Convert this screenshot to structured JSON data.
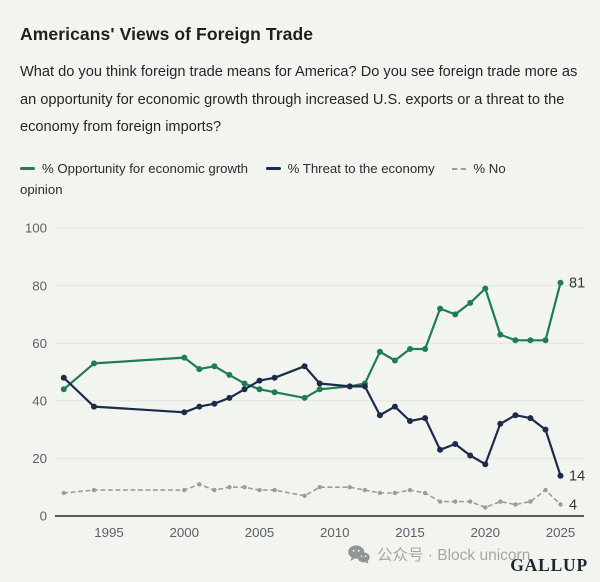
{
  "page": {
    "background": "#f2f4ef"
  },
  "header": {
    "title": "Americans' Views of Foreign Trade",
    "question": "What do you think foreign trade means for America? Do you see foreign trade more as an opportunity for economic growth through increased U.S. exports or a threat to the economy from foreign imports?"
  },
  "legend": {
    "items": [
      {
        "label": "% Opportunity for economic growth",
        "color": "#1f7d54",
        "style": "solid"
      },
      {
        "label": "% Threat to the economy",
        "color": "#1b2b4b",
        "style": "solid"
      },
      {
        "label": "% No opinion",
        "color": "#999e97",
        "style": "dashed"
      }
    ]
  },
  "chart_data": {
    "type": "line",
    "title": "Americans' Views of Foreign Trade",
    "xlabel": "",
    "ylabel": "",
    "ylim": [
      0,
      100
    ],
    "yticks": [
      0,
      20,
      40,
      60,
      80,
      100
    ],
    "xticks": [
      1995,
      2000,
      2005,
      2010,
      2015,
      2020,
      2025
    ],
    "grid": true,
    "legend_position": "top",
    "x": [
      1992,
      1994,
      2000,
      2001,
      2002,
      2003,
      2004,
      2005,
      2006,
      2008,
      2009,
      2011,
      2012,
      2013,
      2014,
      2015,
      2016,
      2017,
      2018,
      2019,
      2020,
      2021,
      2022,
      2023,
      2024,
      2025
    ],
    "series": [
      {
        "name": "% Opportunity for economic growth",
        "color": "#1f7d54",
        "dashed": false,
        "values": [
          44,
          53,
          55,
          51,
          52,
          49,
          46,
          44,
          43,
          41,
          44,
          45,
          46,
          57,
          54,
          58,
          58,
          72,
          70,
          74,
          79,
          63,
          61,
          61,
          61,
          81
        ]
      },
      {
        "name": "% Threat to the economy",
        "color": "#1b2b4b",
        "dashed": false,
        "values": [
          48,
          38,
          36,
          38,
          39,
          41,
          44,
          47,
          48,
          52,
          46,
          45,
          45,
          35,
          38,
          33,
          34,
          23,
          25,
          21,
          18,
          32,
          35,
          34,
          30,
          14
        ]
      },
      {
        "name": "% No opinion",
        "color": "#999e97",
        "dashed": true,
        "values": [
          8,
          9,
          9,
          11,
          9,
          10,
          10,
          9,
          9,
          7,
          10,
          10,
          9,
          8,
          8,
          9,
          8,
          5,
          5,
          5,
          3,
          5,
          4,
          5,
          9,
          4
        ]
      }
    ],
    "end_labels": [
      {
        "text": "81",
        "value": 81
      },
      {
        "text": "14",
        "value": 14
      },
      {
        "text": "4",
        "value": 4
      }
    ]
  },
  "footer": {
    "logo": "GALLUP",
    "watermark": "公众号 · Block unicorn",
    "watermark_icon": "wechat-icon"
  }
}
